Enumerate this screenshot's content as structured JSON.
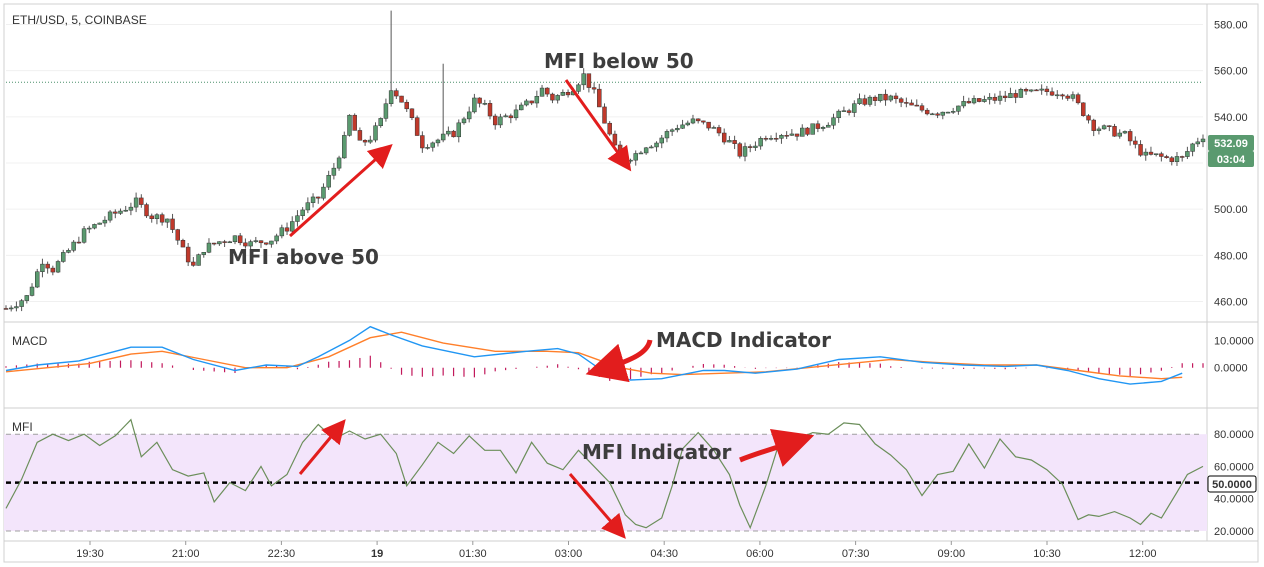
{
  "symbol_title": "ETH/USD, 5, COINBASE",
  "colors": {
    "up": "#5a9a6f",
    "down": "#c0392b",
    "macd_line": "#2196f3",
    "signal_line": "#ff7f2a",
    "histogram": "#c2185b",
    "mfi_line": "#6b8e5a",
    "mfi_band": "#f3e5fb",
    "arrow": "#e21d1d",
    "price_tag": "#5a9a6f"
  },
  "annotations": {
    "mfi_above": "MFI above 50",
    "mfi_below": "MFI below 50",
    "macd_indicator": "MACD Indicator",
    "mfi_indicator": "MFI Indicator"
  },
  "chart_data": [
    {
      "type": "candlestick",
      "title": "ETH/USD, 5, COINBASE",
      "ylim": [
        452,
        588
      ],
      "y_ticks": [
        "460.00",
        "480.00",
        "500.00",
        "520.00",
        "540.00",
        "560.00",
        "580.00"
      ],
      "y_tick_values": [
        460,
        480,
        500,
        520,
        540,
        560,
        580
      ],
      "last_price_label": "532.09",
      "last_price": 532.09,
      "countdown_label": "03:04",
      "reference_level": 555,
      "x_ticks": [
        "19:30",
        "21:00",
        "22:30",
        "19",
        "01:30",
        "03:00",
        "04:30",
        "06:00",
        "07:30",
        "09:00",
        "10:30",
        "12:00"
      ],
      "close_path": [
        [
          0,
          457
        ],
        [
          4,
          462
        ],
        [
          7,
          478
        ],
        [
          9,
          474
        ],
        [
          12,
          482
        ],
        [
          15,
          490
        ],
        [
          20,
          497
        ],
        [
          25,
          503
        ],
        [
          28,
          497
        ],
        [
          31,
          496
        ],
        [
          34,
          482
        ],
        [
          36,
          475
        ],
        [
          38,
          483
        ],
        [
          41,
          486
        ],
        [
          44,
          488
        ],
        [
          47,
          485
        ],
        [
          51,
          487
        ],
        [
          54,
          492
        ],
        [
          57,
          500
        ],
        [
          60,
          505
        ],
        [
          63,
          518
        ],
        [
          65,
          530
        ],
        [
          66,
          540
        ],
        [
          68,
          528
        ],
        [
          70,
          531
        ],
        [
          72,
          538
        ],
        [
          73,
          546
        ],
        [
          74,
          553
        ],
        [
          76,
          547
        ],
        [
          78,
          538
        ],
        [
          80,
          528
        ],
        [
          83,
          530
        ],
        [
          86,
          533
        ],
        [
          88,
          540
        ],
        [
          90,
          547
        ],
        [
          92,
          544
        ],
        [
          94,
          538
        ],
        [
          96,
          540
        ],
        [
          98,
          542
        ],
        [
          101,
          547
        ],
        [
          103,
          552
        ],
        [
          105,
          548
        ],
        [
          107,
          550
        ],
        [
          109,
          553
        ],
        [
          111,
          558
        ],
        [
          113,
          550
        ],
        [
          115,
          538
        ],
        [
          117,
          526
        ],
        [
          119,
          522
        ],
        [
          121,
          524
        ],
        [
          123,
          528
        ],
        [
          125,
          529
        ],
        [
          127,
          533
        ],
        [
          129,
          536
        ],
        [
          132,
          538
        ],
        [
          135,
          536
        ],
        [
          137,
          533
        ],
        [
          139,
          529
        ],
        [
          141,
          524
        ],
        [
          143,
          527
        ],
        [
          146,
          532
        ],
        [
          149,
          533
        ],
        [
          152,
          533
        ],
        [
          155,
          535
        ],
        [
          158,
          538
        ],
        [
          161,
          542
        ],
        [
          164,
          546
        ],
        [
          167,
          548
        ],
        [
          170,
          548
        ],
        [
          173,
          545
        ],
        [
          176,
          543
        ],
        [
          179,
          542
        ],
        [
          182,
          544
        ],
        [
          185,
          546
        ],
        [
          188,
          547
        ],
        [
          191,
          548
        ],
        [
          194,
          550
        ],
        [
          197,
          550
        ],
        [
          200,
          551
        ],
        [
          203,
          551
        ],
        [
          205,
          548
        ],
        [
          207,
          542
        ],
        [
          209,
          536
        ],
        [
          212,
          534
        ],
        [
          215,
          532
        ],
        [
          217,
          527
        ],
        [
          219,
          523
        ],
        [
          221,
          523
        ],
        [
          223,
          522
        ],
        [
          226,
          522
        ],
        [
          228,
          528
        ],
        [
          230,
          532
        ]
      ]
    },
    {
      "type": "line",
      "title": "MACD",
      "ylim": [
        -14,
        16
      ],
      "y_ticks": [
        "0.0000",
        "10.0000"
      ],
      "y_tick_values": [
        0,
        10
      ],
      "series": [
        {
          "values": [
            [
              0,
              -1
            ],
            [
              6,
              1
            ],
            [
              14,
              2.5
            ],
            [
              24,
              7.5
            ],
            [
              30,
              7.5
            ],
            [
              36,
              3
            ],
            [
              44,
              -1
            ],
            [
              50,
              1
            ],
            [
              56,
              0.5
            ],
            [
              60,
              4
            ],
            [
              66,
              10
            ],
            [
              70,
              15
            ],
            [
              74,
              12
            ],
            [
              80,
              8
            ],
            [
              90,
              4
            ],
            [
              100,
              6
            ],
            [
              106,
              7
            ],
            [
              110,
              5
            ],
            [
              116,
              -3
            ],
            [
              120,
              -4.5
            ],
            [
              126,
              -4
            ],
            [
              134,
              -1
            ],
            [
              138,
              -1
            ],
            [
              144,
              -2
            ],
            [
              152,
              -0.5
            ],
            [
              160,
              3
            ],
            [
              168,
              4
            ],
            [
              176,
              2
            ],
            [
              184,
              1
            ],
            [
              192,
              0.5
            ],
            [
              198,
              1
            ],
            [
              204,
              -1
            ],
            [
              210,
              -4
            ],
            [
              216,
              -6
            ],
            [
              222,
              -5
            ],
            [
              226,
              -2
            ]
          ]
        },
        {
          "values": [
            [
              0,
              -1.5
            ],
            [
              8,
              0
            ],
            [
              16,
              1.5
            ],
            [
              24,
              5
            ],
            [
              30,
              6
            ],
            [
              38,
              3
            ],
            [
              46,
              0
            ],
            [
              54,
              0
            ],
            [
              62,
              4
            ],
            [
              70,
              11
            ],
            [
              76,
              13
            ],
            [
              84,
              9
            ],
            [
              94,
              6
            ],
            [
              104,
              6
            ],
            [
              110,
              5.5
            ],
            [
              118,
              0
            ],
            [
              124,
              -2
            ],
            [
              130,
              -2.5
            ],
            [
              138,
              -2
            ],
            [
              146,
              -1.5
            ],
            [
              154,
              0
            ],
            [
              162,
              1.5
            ],
            [
              170,
              3
            ],
            [
              178,
              2
            ],
            [
              188,
              1
            ],
            [
              198,
              1
            ],
            [
              206,
              -1
            ],
            [
              214,
              -3
            ],
            [
              222,
              -4
            ],
            [
              226,
              -3.5
            ]
          ]
        }
      ]
    },
    {
      "type": "line",
      "title": "MFI",
      "ylim": [
        15,
        95
      ],
      "y_ticks": [
        "20.0000",
        "40.0000",
        "60.0000",
        "80.0000"
      ],
      "y_tick_values": [
        20,
        40,
        60,
        80
      ],
      "midline_label": "50.0000",
      "band": [
        20,
        80
      ],
      "series": [
        {
          "values": [
            [
              0,
              34
            ],
            [
              3,
              52
            ],
            [
              6,
              75
            ],
            [
              9,
              80
            ],
            [
              12,
              76
            ],
            [
              15,
              80
            ],
            [
              18,
              73
            ],
            [
              21,
              79
            ],
            [
              24,
              89
            ],
            [
              26,
              66
            ],
            [
              29,
              75
            ],
            [
              32,
              58
            ],
            [
              35,
              54
            ],
            [
              38,
              56
            ],
            [
              40,
              38
            ],
            [
              43,
              50
            ],
            [
              46,
              45
            ],
            [
              49,
              60
            ],
            [
              51,
              48
            ],
            [
              54,
              55
            ],
            [
              57,
              75
            ],
            [
              60,
              86
            ],
            [
              63,
              77
            ],
            [
              66,
              82
            ],
            [
              69,
              77
            ],
            [
              72,
              80
            ],
            [
              75,
              68
            ],
            [
              77,
              48
            ],
            [
              80,
              61
            ],
            [
              83,
              75
            ],
            [
              86,
              68
            ],
            [
              89,
              79
            ],
            [
              92,
              70
            ],
            [
              95,
              70
            ],
            [
              98,
              56
            ],
            [
              101,
              75
            ],
            [
              104,
              62
            ],
            [
              107,
              58
            ],
            [
              110,
              70
            ],
            [
              113,
              60
            ],
            [
              116,
              50
            ],
            [
              119,
              30
            ],
            [
              121,
              24
            ],
            [
              123,
              22
            ],
            [
              126,
              28
            ],
            [
              128,
              48
            ],
            [
              130,
              71
            ],
            [
              133,
              81
            ],
            [
              136,
              70
            ],
            [
              139,
              55
            ],
            [
              141,
              36
            ],
            [
              143,
              22
            ],
            [
              146,
              48
            ],
            [
              149,
              79
            ],
            [
              152,
              77
            ],
            [
              155,
              81
            ],
            [
              158,
              80
            ],
            [
              161,
              87
            ],
            [
              164,
              86
            ],
            [
              167,
              74
            ],
            [
              170,
              67
            ],
            [
              173,
              58
            ],
            [
              176,
              42
            ],
            [
              179,
              55
            ],
            [
              182,
              57
            ],
            [
              185,
              74
            ],
            [
              188,
              59
            ],
            [
              191,
              77
            ],
            [
              194,
              66
            ],
            [
              197,
              64
            ],
            [
              200,
              58
            ],
            [
              203,
              49
            ],
            [
              206,
              27
            ],
            [
              208,
              30
            ],
            [
              210,
              29
            ],
            [
              213,
              32
            ],
            [
              216,
              28
            ],
            [
              218,
              24
            ],
            [
              220,
              31
            ],
            [
              222,
              28
            ],
            [
              225,
              44
            ],
            [
              227,
              55
            ],
            [
              230,
              60
            ]
          ]
        }
      ]
    }
  ]
}
